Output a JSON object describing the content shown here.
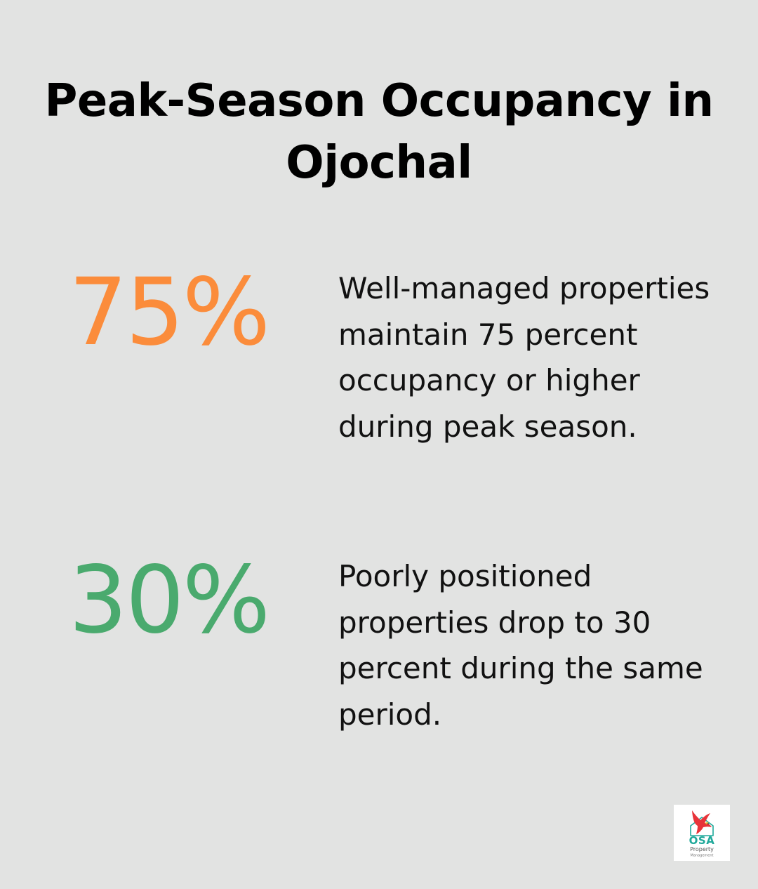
{
  "title": "Peak-Season Occupancy in Ojochal",
  "stats": [
    {
      "value": "75%",
      "description": "Well-managed properties maintain 75 percent occupancy or higher during peak season.",
      "color": "#fb8c3b"
    },
    {
      "value": "30%",
      "description": "Poorly positioned properties drop to 30 percent during the same period.",
      "color": "#4aaa6e"
    }
  ],
  "logo": {
    "brand": "OSA",
    "line1": "Property",
    "line2": "Management",
    "icon": "red-bird-icon"
  },
  "colors": {
    "background": "#e2e3e2",
    "accent_orange": "#fb8c3b",
    "accent_green": "#4aaa6e",
    "logo_red": "#e8343a",
    "logo_teal": "#1fa89a",
    "logo_yellow": "#e7b52c"
  }
}
